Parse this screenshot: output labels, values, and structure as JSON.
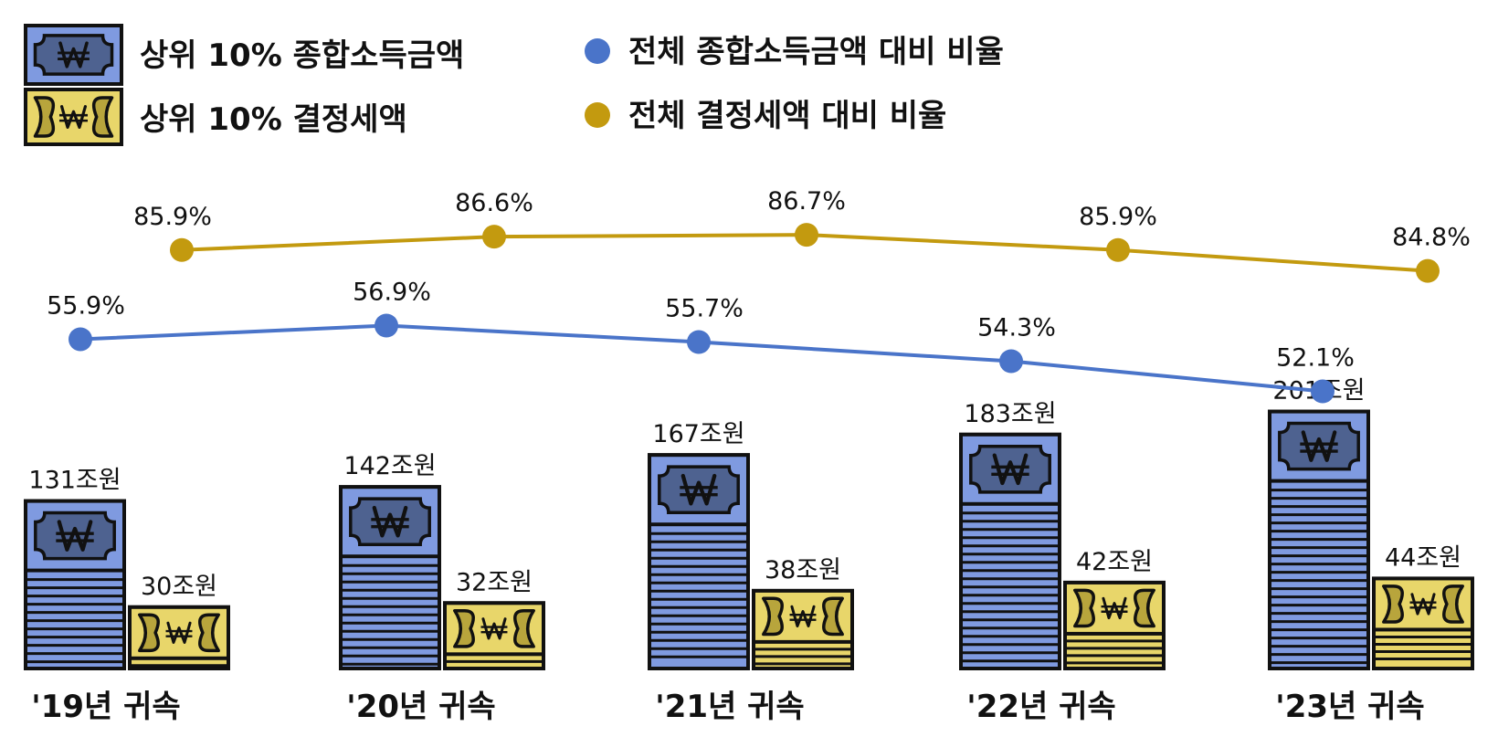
{
  "chart_data": {
    "type": "bar",
    "categories": [
      "'19년 귀속",
      "'20년 귀속",
      "'21년 귀속",
      "'22년 귀속",
      "'23년 귀속"
    ],
    "series": [
      {
        "name": "상위 10% 종합소득금액",
        "kind": "bar",
        "unit": "조원",
        "values": [
          131,
          142,
          167,
          183,
          201
        ],
        "labels": [
          "131조원",
          "142조원",
          "167조원",
          "183조원",
          "201조원"
        ],
        "color": "#7f9ae0"
      },
      {
        "name": "상위 10% 결정세액",
        "kind": "bar",
        "unit": "조원",
        "values": [
          30,
          32,
          38,
          42,
          44
        ],
        "labels": [
          "30조원",
          "32조원",
          "38조원",
          "42조원",
          "44조원"
        ],
        "color": "#e8d66a"
      },
      {
        "name": "전체 종합소득금액 대비 비율",
        "kind": "line",
        "unit": "%",
        "values": [
          55.9,
          56.9,
          55.7,
          54.3,
          52.1
        ],
        "labels": [
          "55.9%",
          "56.9%",
          "55.7%",
          "54.3%",
          "52.1%"
        ],
        "color": "#4a74c9"
      },
      {
        "name": "전체 결정세액 대비 비율",
        "kind": "line",
        "unit": "%",
        "values": [
          85.9,
          86.6,
          86.7,
          85.9,
          84.8
        ],
        "labels": [
          "85.9%",
          "86.6%",
          "86.7%",
          "85.9%",
          "84.8%"
        ],
        "color": "#c39a0f"
      }
    ],
    "legend": [
      {
        "text": "상위 10% 종합소득금액",
        "marker": "won-bill-blue"
      },
      {
        "text": "상위 10% 결정세액",
        "marker": "won-bill-yellow"
      },
      {
        "text": "전체 종합소득금액 대비 비율",
        "marker": "dot-blue"
      },
      {
        "text": "전체 결정세액 대비 비율",
        "marker": "dot-gold"
      }
    ],
    "legend_position": "top",
    "grid": false
  }
}
